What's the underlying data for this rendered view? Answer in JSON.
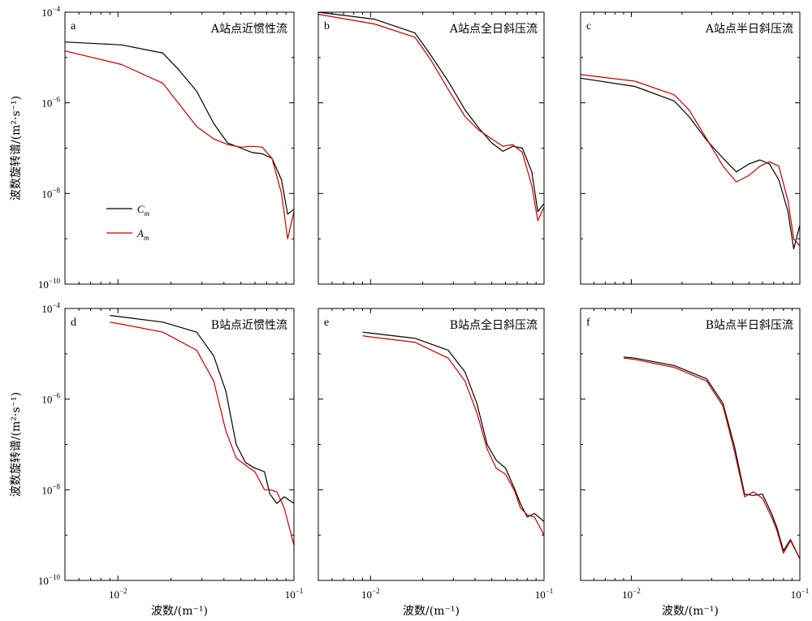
{
  "chart_data": {
    "type": "line",
    "xscale": "log",
    "yscale": "log",
    "xlim": [
      0.005,
      0.1
    ],
    "ylim": [
      1e-10,
      0.0001
    ],
    "xticks": [
      0.01,
      0.1
    ],
    "yticks": [
      1e-10,
      1e-08,
      1e-06,
      0.0001
    ],
    "xlabel": "波数/(m⁻¹)",
    "ylabel": "波数旋转谱/(m²·s⁻¹)",
    "legend": {
      "placement": "lower-left (panel a)",
      "entries": [
        {
          "name": "C_m",
          "main": "C",
          "sub": "m",
          "color": "#000000"
        },
        {
          "name": "A_m",
          "main": "A",
          "sub": "m",
          "color": "#c00000"
        }
      ]
    },
    "panels": [
      {
        "letter": "a",
        "title": "A站点近惯性流",
        "series": [
          {
            "name": "C_m",
            "color": "#000000",
            "x": [
              0.005,
              0.0105,
              0.018,
              0.022,
              0.028,
              0.035,
              0.042,
              0.05,
              0.058,
              0.066,
              0.075,
              0.085,
              0.092,
              0.1
            ],
            "y": [
              2.2e-05,
              1.9e-05,
              1.25e-05,
              5.5e-06,
              1.8e-06,
              3.5e-07,
              1.3e-07,
              1e-07,
              8e-08,
              7.5e-08,
              6e-08,
              2e-08,
              3.5e-09,
              4.5e-09
            ]
          },
          {
            "name": "A_m",
            "color": "#c00000",
            "x": [
              0.005,
              0.0105,
              0.018,
              0.022,
              0.028,
              0.035,
              0.042,
              0.05,
              0.058,
              0.066,
              0.075,
              0.085,
              0.092,
              0.1
            ],
            "y": [
              1.4e-05,
              7e-06,
              2.7e-06,
              1e-06,
              3e-07,
              1.6e-07,
              1.2e-07,
              1.05e-07,
              1.1e-07,
              1.05e-07,
              6e-08,
              1e-08,
              1e-09,
              4e-09
            ]
          }
        ]
      },
      {
        "letter": "b",
        "title": "A站点全日斜压流",
        "series": [
          {
            "name": "C_m",
            "color": "#000000",
            "x": [
              0.005,
              0.0105,
              0.018,
              0.022,
              0.028,
              0.035,
              0.042,
              0.05,
              0.058,
              0.066,
              0.075,
              0.085,
              0.092,
              0.1
            ],
            "y": [
              0.0001,
              7e-05,
              3.5e-05,
              1.2e-05,
              3e-06,
              7e-07,
              2.8e-07,
              1.3e-07,
              8.5e-08,
              1.1e-07,
              1e-07,
              3e-08,
              4e-09,
              6e-09
            ]
          },
          {
            "name": "A_m",
            "color": "#c00000",
            "x": [
              0.005,
              0.0105,
              0.018,
              0.022,
              0.028,
              0.035,
              0.042,
              0.05,
              0.058,
              0.066,
              0.075,
              0.085,
              0.092,
              0.1
            ],
            "y": [
              9e-05,
              5.5e-05,
              2.8e-05,
              9.5e-06,
              2e-06,
              5e-07,
              2.5e-07,
              1.6e-07,
              1.1e-07,
              1.2e-07,
              8e-08,
              1.5e-08,
              2.5e-09,
              5e-09
            ]
          }
        ]
      },
      {
        "letter": "c",
        "title": "A站点半日斜压流",
        "series": [
          {
            "name": "C_m",
            "color": "#000000",
            "x": [
              0.005,
              0.0105,
              0.018,
              0.022,
              0.028,
              0.035,
              0.042,
              0.05,
              0.058,
              0.066,
              0.075,
              0.085,
              0.092,
              0.1
            ],
            "y": [
              3.5e-06,
              2.3e-06,
              1.1e-06,
              5e-07,
              1.5e-07,
              6e-08,
              3e-08,
              4.5e-08,
              5.5e-08,
              4.5e-08,
              2e-08,
              4e-09,
              6e-10,
              2e-09
            ]
          },
          {
            "name": "A_m",
            "color": "#c00000",
            "x": [
              0.005,
              0.0105,
              0.018,
              0.022,
              0.028,
              0.035,
              0.042,
              0.05,
              0.058,
              0.066,
              0.075,
              0.085,
              0.092,
              0.1
            ],
            "y": [
              4.2e-06,
              3e-06,
              1.5e-06,
              7e-07,
              1.6e-07,
              4e-08,
              1.8e-08,
              2.5e-08,
              4e-08,
              5e-08,
              4e-08,
              7e-09,
              1e-09,
              7e-10
            ]
          }
        ]
      },
      {
        "letter": "d",
        "title": "B站点近惯性流",
        "series": [
          {
            "name": "C_m",
            "color": "#000000",
            "x": [
              0.009,
              0.0105,
              0.018,
              0.028,
              0.035,
              0.041,
              0.047,
              0.053,
              0.06,
              0.068,
              0.073,
              0.08,
              0.088,
              0.1
            ],
            "y": [
              7e-05,
              6.5e-05,
              5e-05,
              3e-05,
              9e-06,
              1.5e-06,
              1e-07,
              4e-08,
              3e-08,
              2.5e-08,
              8e-09,
              5e-09,
              7e-09,
              5e-09
            ]
          },
          {
            "name": "A_m",
            "color": "#c00000",
            "x": [
              0.009,
              0.0105,
              0.018,
              0.028,
              0.035,
              0.041,
              0.047,
              0.053,
              0.06,
              0.068,
              0.073,
              0.08,
              0.088,
              0.1
            ],
            "y": [
              5e-05,
              4.5e-05,
              3e-05,
              1.2e-05,
              2.5e-06,
              2e-07,
              5e-08,
              3.5e-08,
              2.5e-08,
              1e-08,
              1e-08,
              9e-09,
              4e-09,
              6e-10
            ]
          }
        ]
      },
      {
        "letter": "e",
        "title": "B站点全日斜压流",
        "series": [
          {
            "name": "C_m",
            "color": "#000000",
            "x": [
              0.009,
              0.0105,
              0.018,
              0.028,
              0.035,
              0.041,
              0.047,
              0.053,
              0.06,
              0.068,
              0.073,
              0.08,
              0.088,
              0.1
            ],
            "y": [
              3e-05,
              2.8e-05,
              2.2e-05,
              1.2e-05,
              4e-06,
              8e-07,
              1e-07,
              4.5e-08,
              3e-08,
              1e-08,
              5e-09,
              2.5e-09,
              3e-09,
              2e-09
            ]
          },
          {
            "name": "A_m",
            "color": "#c00000",
            "x": [
              0.009,
              0.0105,
              0.018,
              0.028,
              0.035,
              0.041,
              0.047,
              0.053,
              0.06,
              0.068,
              0.073,
              0.08,
              0.088,
              0.1
            ],
            "y": [
              2.5e-05,
              2.3e-05,
              1.8e-05,
              8e-06,
              2.5e-06,
              5e-07,
              8e-08,
              3e-08,
              2.2e-08,
              9e-09,
              4e-09,
              2.8e-09,
              2.5e-09,
              1e-09
            ]
          }
        ]
      },
      {
        "letter": "f",
        "title": "B站点半日斜压流",
        "series": [
          {
            "name": "C_m",
            "color": "#000000",
            "x": [
              0.009,
              0.0105,
              0.018,
              0.028,
              0.035,
              0.041,
              0.047,
              0.053,
              0.06,
              0.068,
              0.073,
              0.08,
              0.088,
              0.1
            ],
            "y": [
              8.5e-06,
              8e-06,
              5.5e-06,
              2.8e-06,
              8e-07,
              9e-08,
              8e-09,
              7.5e-09,
              8e-09,
              3e-09,
              1.5e-09,
              4.5e-10,
              8e-10,
              3e-10
            ]
          },
          {
            "name": "A_m",
            "color": "#c00000",
            "x": [
              0.009,
              0.0105,
              0.018,
              0.028,
              0.035,
              0.041,
              0.047,
              0.053,
              0.06,
              0.068,
              0.073,
              0.08,
              0.088,
              0.1
            ],
            "y": [
              8e-06,
              7.5e-06,
              5e-06,
              2.5e-06,
              7e-07,
              7e-08,
              7e-09,
              9e-09,
              6.5e-09,
              2.5e-09,
              1.3e-09,
              4e-10,
              7.5e-10,
              3e-10
            ]
          }
        ]
      }
    ]
  }
}
